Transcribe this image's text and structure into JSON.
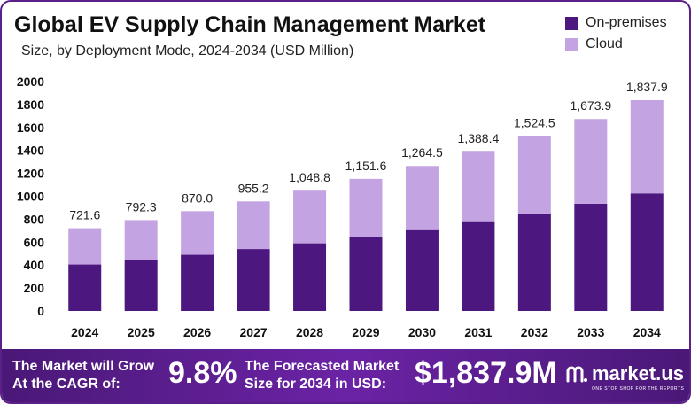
{
  "header": {
    "title": "Global EV Supply Chain Management Market",
    "subtitle": "Size, by Deployment Mode, 2024-2034 (USD Million)"
  },
  "legend": {
    "items": [
      {
        "label": "On-premises",
        "color": "#4d1780"
      },
      {
        "label": "Cloud",
        "color": "#c4a3e3"
      }
    ]
  },
  "chart_data": {
    "type": "bar",
    "stacked": true,
    "categories": [
      "2024",
      "2025",
      "2026",
      "2027",
      "2028",
      "2029",
      "2030",
      "2031",
      "2032",
      "2033",
      "2034"
    ],
    "series": [
      {
        "name": "On-premises",
        "color": "#4d1780",
        "values": [
          405,
          445,
          490,
          540,
          590,
          645,
          705,
          775,
          850,
          935,
          1025
        ]
      },
      {
        "name": "Cloud",
        "color": "#c4a3e3",
        "values": [
          316.6,
          347.3,
          380.0,
          415.2,
          458.8,
          506.6,
          559.5,
          613.4,
          674.5,
          738.9,
          812.9
        ]
      }
    ],
    "totals": [
      721.6,
      792.3,
      870.0,
      955.2,
      1048.8,
      1151.6,
      1264.5,
      1388.4,
      1524.5,
      1673.9,
      1837.9
    ],
    "total_labels": [
      "721.6",
      "792.3",
      "870.0",
      "955.2",
      "1,048.8",
      "1,151.6",
      "1,264.5",
      "1,388.4",
      "1,524.5",
      "1,673.9",
      "1,837.9"
    ],
    "yticks": [
      "0",
      "200",
      "400",
      "600",
      "800",
      "1000",
      "1200",
      "1400",
      "1600",
      "1800",
      "2000"
    ],
    "ylim": [
      0,
      2000
    ],
    "grid": false,
    "legend_position": "top-right"
  },
  "footer": {
    "cagr_label_line1": "The Market will Grow",
    "cagr_label_line2": "At the CAGR of:",
    "cagr_value": "9.8%",
    "forecast_label_line1": "The Forecasted Market",
    "forecast_label_line2": "Size for 2034 in USD:",
    "forecast_value": "$1,837.9M",
    "brand_name": "market.us",
    "brand_tagline": "ONE STOP SHOP FOR THE REPORTS"
  }
}
